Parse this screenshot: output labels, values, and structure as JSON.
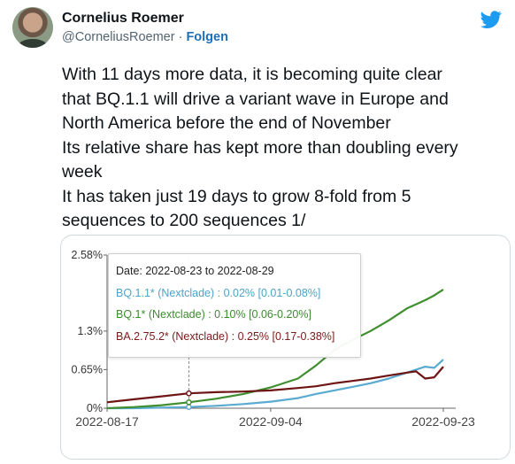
{
  "author": {
    "name": "Cornelius Roemer",
    "handle": "@CorneliusRoemer",
    "separator": " · ",
    "follow_label": "Folgen"
  },
  "tweet": {
    "lines": [
      "With 11 days more data, it is becoming quite clear",
      "that BQ.1.1 will drive a variant wave in Europe and",
      "North America before the end of November",
      "Its relative share has kept more than doubling every",
      "week",
      "It has taken just 19 days to grow 8-fold from 5",
      "sequences to 200 sequences 1/"
    ]
  },
  "tooltip": {
    "date": "Date: 2022-08-23 to 2022-08-29",
    "rows": [
      {
        "text": "BQ.1.1* (Nextclade) : 0.02% [0.01-0.08%]",
        "color": "#4fa3c7"
      },
      {
        "text": "BQ.1* (Nextclade) : 0.10% [0.06-0.20%]",
        "color": "#3c8c2e"
      },
      {
        "text": "BA.2.75.2* (Nextclade) : 0.25% [0.17-0.38%]",
        "color": "#7a1a1a"
      }
    ]
  },
  "colors": {
    "twitter_blue": "#1d9bf0",
    "bq11": "#5aaad2",
    "bq1": "#3f8f2f",
    "ba2752": "#6e1414"
  },
  "chart_data": {
    "type": "line",
    "y_tick_labels": [
      "2.58%",
      "1.3%",
      "0.65%",
      "0%"
    ],
    "y_tick_values": [
      2.58,
      1.3,
      0.65,
      0
    ],
    "x_tick_labels": [
      "2022-08-17",
      "2022-09-04",
      "2022-09-23"
    ],
    "x_tick_days": [
      0,
      18,
      37
    ],
    "ylim": [
      0,
      2.58
    ],
    "xlim_days": [
      0,
      37
    ],
    "hover_day": 9,
    "series": [
      {
        "name": "BQ.1.1* (Nextclade)",
        "color": "#5aaad2",
        "x": [
          0,
          3,
          6,
          9,
          12,
          15,
          18,
          21,
          23,
          25,
          27,
          29,
          31,
          33,
          35,
          36,
          37
        ],
        "y": [
          0.0,
          0.0,
          0.01,
          0.02,
          0.04,
          0.07,
          0.11,
          0.17,
          0.24,
          0.3,
          0.36,
          0.42,
          0.5,
          0.6,
          0.7,
          0.68,
          0.82
        ]
      },
      {
        "name": "BQ.1* (Nextclade)",
        "color": "#3f8f2f",
        "x": [
          0,
          3,
          6,
          9,
          12,
          15,
          18,
          21,
          23,
          25,
          27,
          29,
          31,
          33,
          35,
          36,
          37
        ],
        "y": [
          0.0,
          0.02,
          0.05,
          0.1,
          0.16,
          0.24,
          0.35,
          0.5,
          0.72,
          0.98,
          1.15,
          1.3,
          1.48,
          1.68,
          1.82,
          1.9,
          2.0
        ]
      },
      {
        "name": "BA.2.75.2* (Nextclade)",
        "color": "#6e1414",
        "x": [
          0,
          3,
          6,
          9,
          12,
          15,
          18,
          21,
          23,
          25,
          27,
          29,
          31,
          33,
          34,
          35,
          36,
          37
        ],
        "y": [
          0.1,
          0.15,
          0.2,
          0.25,
          0.27,
          0.28,
          0.3,
          0.34,
          0.37,
          0.42,
          0.46,
          0.5,
          0.55,
          0.6,
          0.62,
          0.5,
          0.52,
          0.7
        ]
      }
    ]
  }
}
